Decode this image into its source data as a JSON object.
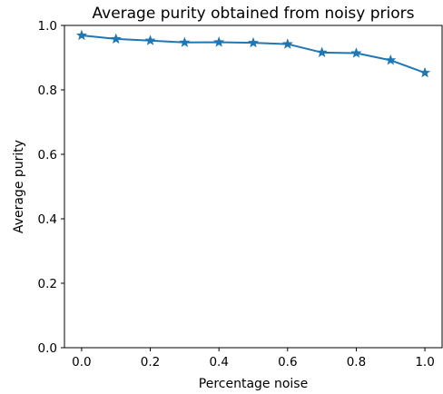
{
  "chart_data": {
    "type": "line",
    "title": "Average purity obtained from noisy priors",
    "xlabel": "Percentage noise",
    "ylabel": "Average purity",
    "xlim": [
      -0.05,
      1.05
    ],
    "ylim": [
      0.0,
      1.0
    ],
    "xticks": [
      0.0,
      0.2,
      0.4,
      0.6,
      0.8,
      1.0
    ],
    "xtick_labels": [
      "0.0",
      "0.2",
      "0.4",
      "0.6",
      "0.8",
      "1.0"
    ],
    "yticks": [
      0.0,
      0.2,
      0.4,
      0.6,
      0.8,
      1.0
    ],
    "ytick_labels": [
      "0.0",
      "0.2",
      "0.4",
      "0.6",
      "0.8",
      "1.0"
    ],
    "grid": false,
    "legend": "none",
    "series": [
      {
        "color": "#1f77b4",
        "marker": "star",
        "x": [
          0.0,
          0.1,
          0.2,
          0.3,
          0.4,
          0.5,
          0.6,
          0.7,
          0.8,
          0.9,
          1.0
        ],
        "y": [
          0.969,
          0.958,
          0.953,
          0.947,
          0.948,
          0.946,
          0.942,
          0.916,
          0.914,
          0.892,
          0.853
        ]
      }
    ]
  }
}
